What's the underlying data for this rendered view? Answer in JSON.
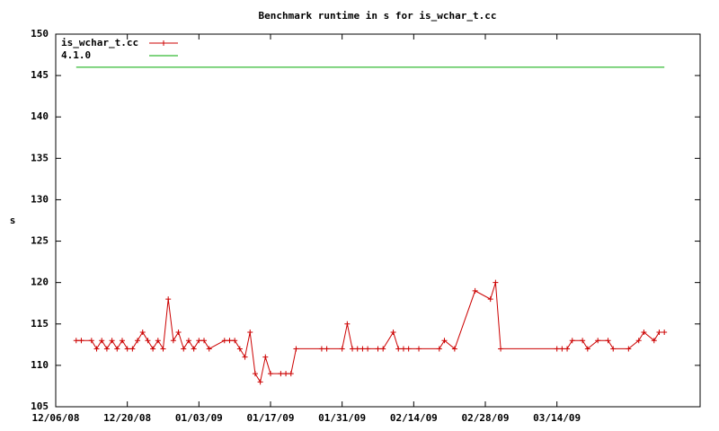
{
  "chart_data": {
    "type": "line",
    "title": "Benchmark runtime in s for is_wchar_t.cc",
    "y_label": "s",
    "x": [
      "12/10/08",
      "12/11/08",
      "12/13/08",
      "12/14/08",
      "12/15/08",
      "12/16/08",
      "12/17/08",
      "12/18/08",
      "12/19/08",
      "12/20/08",
      "12/21/08",
      "12/22/08",
      "12/23/08",
      "12/24/08",
      "12/25/08",
      "12/26/08",
      "12/27/08",
      "12/28/08",
      "12/29/08",
      "12/30/08",
      "12/31/08",
      "01/01/09",
      "01/02/09",
      "01/03/09",
      "01/04/09",
      "01/05/09",
      "01/08/09",
      "01/09/09",
      "01/10/09",
      "01/11/09",
      "01/12/09",
      "01/13/09",
      "01/14/09",
      "01/15/09",
      "01/16/09",
      "01/17/09",
      "01/19/09",
      "01/20/09",
      "01/21/09",
      "01/22/09",
      "01/27/09",
      "01/28/09",
      "01/31/09",
      "02/01/09",
      "02/02/09",
      "02/03/09",
      "02/04/09",
      "02/05/09",
      "02/07/09",
      "02/08/09",
      "02/10/09",
      "02/11/09",
      "02/12/09",
      "02/13/09",
      "02/15/09",
      "02/19/09",
      "02/20/09",
      "02/22/09",
      "02/26/09",
      "03/01/09",
      "03/02/09",
      "03/03/09",
      "03/14/09",
      "03/15/09",
      "03/16/09",
      "03/17/09",
      "03/19/09",
      "03/20/09",
      "03/22/09",
      "03/24/09",
      "03/25/09",
      "03/28/09",
      "03/30/09",
      "03/31/09",
      "04/02/09",
      "04/03/09",
      "04/04/09"
    ],
    "series": [
      {
        "name": "is_wchar_t.cc",
        "color": "#cc0000",
        "marker": "cross",
        "values": [
          113,
          113,
          113,
          112,
          113,
          112,
          113,
          112,
          113,
          112,
          112,
          113,
          114,
          113,
          112,
          113,
          112,
          118,
          113,
          114,
          112,
          113,
          112,
          113,
          113,
          112,
          113,
          113,
          113,
          112,
          111,
          114,
          109,
          108,
          111,
          109,
          109,
          109,
          109,
          112,
          112,
          112,
          112,
          115,
          112,
          112,
          112,
          112,
          112,
          112,
          114,
          112,
          112,
          112,
          112,
          112,
          113,
          112,
          119,
          118,
          120,
          112,
          112,
          112,
          112,
          113,
          113,
          112,
          113,
          113,
          112,
          112,
          113,
          114,
          113,
          114,
          114
        ]
      },
      {
        "name": "4.1.0",
        "color": "#00aa00",
        "x": [
          "12/10/08",
          "04/04/09"
        ],
        "values": [
          146,
          146
        ]
      }
    ],
    "xlim": [
      "12/06/08",
      "04/11/09"
    ],
    "xticks": [
      "12/06/08",
      "12/20/08",
      "01/03/09",
      "01/17/09",
      "01/31/09",
      "02/14/09",
      "02/28/09",
      "03/14/09"
    ],
    "ylim": [
      105,
      150
    ],
    "yticks": [
      105,
      110,
      115,
      120,
      125,
      130,
      135,
      140,
      145,
      150
    ],
    "legend": "top-left"
  }
}
